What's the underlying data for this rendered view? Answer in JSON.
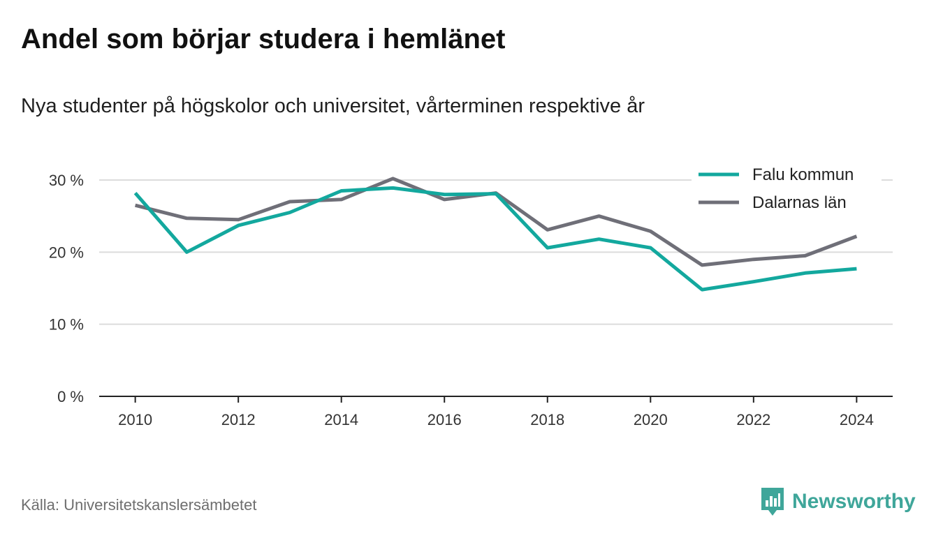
{
  "header": {
    "title": "Andel som börjar studera i hemlänet",
    "subtitle": "Nya studenter på högskolor och universitet, vårterminen respektive år"
  },
  "footer": {
    "source": "Källa: Universitetskanslersämbetet",
    "brand": "Newsworthy",
    "brand_icon": "bar-chart-speech-bubble-icon",
    "brand_color": "#3fa69a"
  },
  "chart_data": {
    "type": "line",
    "title": "Andel som börjar studera i hemlänet",
    "subtitle": "Nya studenter på högskolor och universitet, vårterminen respektive år",
    "x": [
      2010,
      2011,
      2012,
      2013,
      2014,
      2015,
      2016,
      2017,
      2018,
      2019,
      2020,
      2021,
      2022,
      2023,
      2024
    ],
    "xticks": [
      2010,
      2012,
      2014,
      2016,
      2018,
      2020,
      2022,
      2024
    ],
    "xlim": [
      2009.3,
      2024.7
    ],
    "yticks": [
      0,
      10,
      20,
      30
    ],
    "ytick_labels": [
      "0 %",
      "10 %",
      "20 %",
      "30 %"
    ],
    "ylim": [
      0,
      30
    ],
    "grid": true,
    "legend": "top-right",
    "series": [
      {
        "name": "Falu kommun",
        "color": "#13a89e",
        "values": [
          28.2,
          20.0,
          23.7,
          25.5,
          28.5,
          28.9,
          28.0,
          28.1,
          20.6,
          21.8,
          20.6,
          14.8,
          15.9,
          17.1,
          17.7
        ]
      },
      {
        "name": "Dalarnas län",
        "color": "#6f6f78",
        "values": [
          26.5,
          24.7,
          24.5,
          27.0,
          27.3,
          30.2,
          27.3,
          28.2,
          23.1,
          25.0,
          22.9,
          18.2,
          19.0,
          19.5,
          22.2
        ]
      }
    ]
  }
}
